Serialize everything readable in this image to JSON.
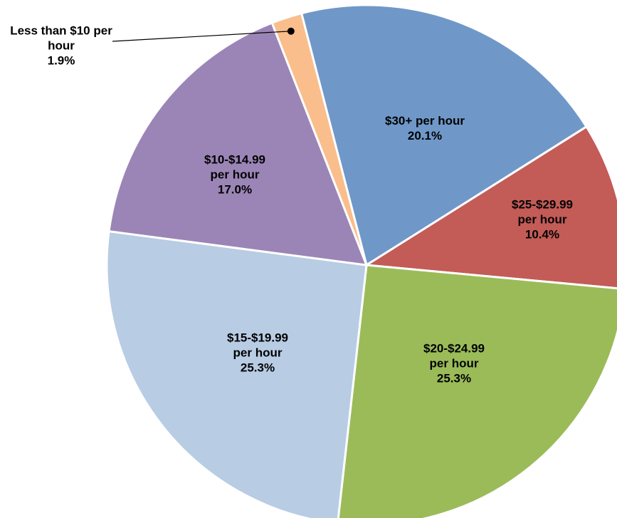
{
  "chart_data": {
    "type": "pie",
    "categories": [
      "$30+ per hour",
      "$25-$29.99 per hour",
      "$20-$24.99 per hour",
      "$15-$19.99 per hour",
      "$10-$14.99 per hour",
      "Less than $10 per hour"
    ],
    "values": [
      20.1,
      10.4,
      25.3,
      25.3,
      17.0,
      1.9
    ],
    "value_labels": [
      "20.1%",
      "10.4%",
      "25.3%",
      "25.3%",
      "17.0%",
      "1.9%"
    ],
    "colors": [
      "#6f98c9",
      "#c35b57",
      "#9bbb59",
      "#b8cce4",
      "#9b85b6",
      "#f9be8c"
    ]
  }
}
